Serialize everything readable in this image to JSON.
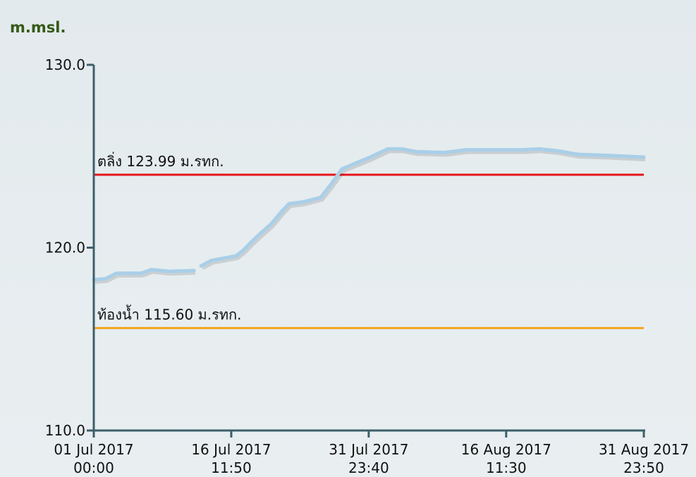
{
  "chart_data": {
    "type": "line",
    "ylabel": "m.msl.",
    "ylim": [
      110,
      130
    ],
    "yticks": [
      {
        "value": 110,
        "label": "110.0"
      },
      {
        "value": 120,
        "label": "120.0"
      },
      {
        "value": 130,
        "label": "130.0"
      }
    ],
    "xlim": [
      "2017-07-01 00:00",
      "2017-08-31 23:50"
    ],
    "xticks": [
      {
        "value": "2017-07-01 00:00",
        "label": [
          "01 Jul 2017",
          "00:00"
        ]
      },
      {
        "value": "2017-07-16 11:50",
        "label": [
          "16 Jul 2017",
          "11:50"
        ]
      },
      {
        "value": "2017-07-31 23:40",
        "label": [
          "31 Jul 2017",
          "23:40"
        ]
      },
      {
        "value": "2017-08-16 11:30",
        "label": [
          "16 Aug 2017",
          "11:30"
        ]
      },
      {
        "value": "2017-08-31 23:50",
        "label": [
          "31 Aug 2017",
          "23:50"
        ]
      }
    ],
    "x": [
      "2017-07-01 00:00",
      "2017-07-02 08:00",
      "2017-07-03 13:00",
      "2017-07-06 08:00",
      "2017-07-07 12:00",
      "2017-07-09 12:00",
      "2017-07-12 07:00",
      "2017-07-12 16:00",
      "2017-07-13 02:00",
      "2017-07-14 06:00",
      "2017-07-17 01:00",
      "2017-07-17 20:00",
      "2017-07-18 15:00",
      "2017-07-19 20:00",
      "2017-07-21 00:00",
      "2017-07-22 05:00",
      "2017-07-23 00:00",
      "2017-07-24 14:00",
      "2017-07-26 14:00",
      "2017-07-27 19:00",
      "2017-07-28 23:00",
      "2017-07-30 04:00",
      "2017-08-01 04:00",
      "2017-08-03 03:00",
      "2017-08-04 17:00",
      "2017-08-06 07:00",
      "2017-08-09 12:00",
      "2017-08-11 21:00",
      "2017-08-15 01:00",
      "2017-08-18 06:00",
      "2017-08-20 05:00",
      "2017-08-22 05:00",
      "2017-08-24 14:00",
      "2017-08-27 18:00",
      "2017-08-31 23:50"
    ],
    "series": [
      {
        "color": "#a9cfe8",
        "values": [
          118.25,
          118.3,
          118.6,
          118.6,
          118.8,
          118.7,
          118.75,
          null,
          119.0,
          119.3,
          119.55,
          119.85,
          120.25,
          120.8,
          121.3,
          122.0,
          122.4,
          122.5,
          122.75,
          123.5,
          124.3,
          124.55,
          124.95,
          125.4,
          125.4,
          125.25,
          125.2,
          125.35,
          125.35,
          125.35,
          125.4,
          125.3,
          125.1,
          125.05,
          124.95
        ]
      }
    ],
    "reference_lines": [
      {
        "label": "ตลิ่ง 123.99 ม.รทก.",
        "value": 123.99,
        "color": "#e8141b"
      },
      {
        "label": "ท้องน้ำ 115.60 ม.รทก.",
        "value": 115.6,
        "color": "#f4a51c"
      }
    ]
  }
}
